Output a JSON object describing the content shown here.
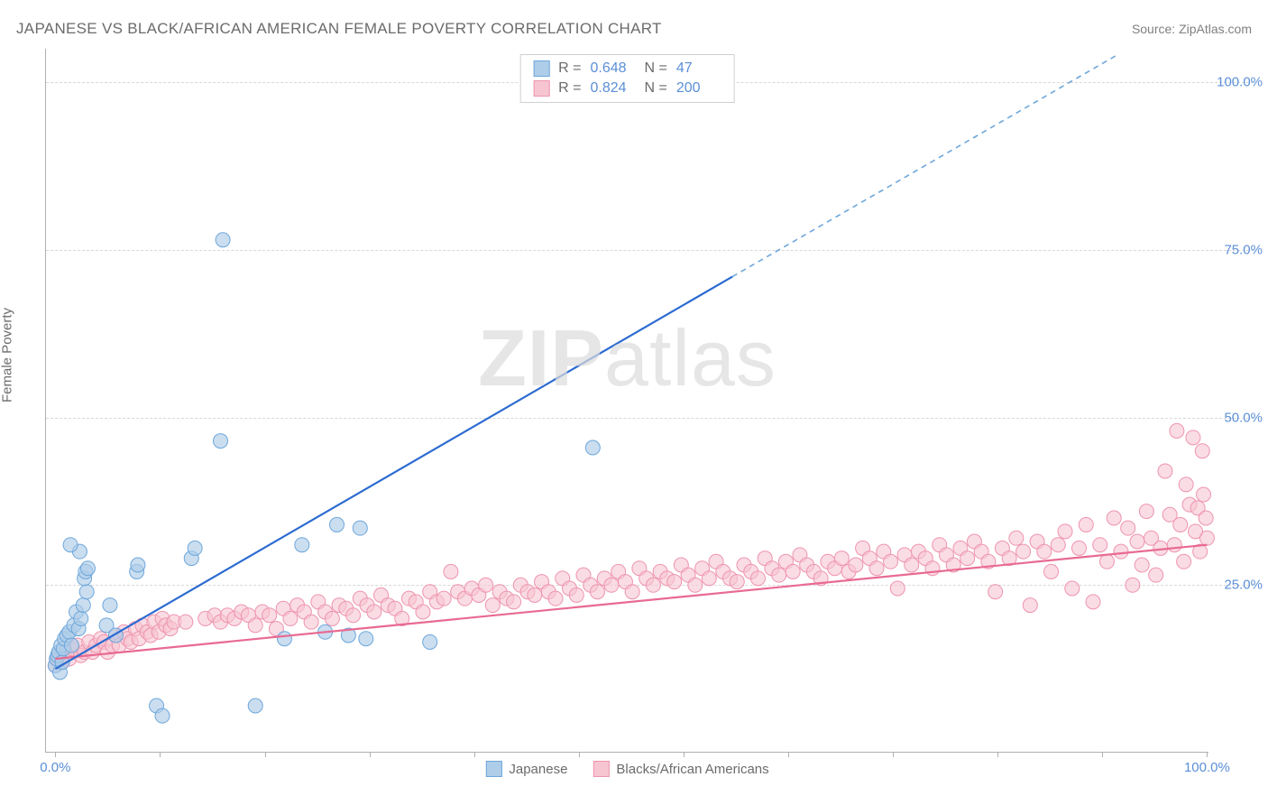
{
  "title": "JAPANESE VS BLACK/AFRICAN AMERICAN FEMALE POVERTY CORRELATION CHART",
  "source": "Source: ZipAtlas.com",
  "watermark_bold": "ZIP",
  "watermark_rest": "atlas",
  "y_axis_label": "Female Poverty",
  "x_range": [
    0,
    100
  ],
  "y_range": [
    0,
    105
  ],
  "y_ticks": [
    {
      "val": 25,
      "label": "25.0%"
    },
    {
      "val": 50,
      "label": "50.0%"
    },
    {
      "val": 75,
      "label": "75.0%"
    },
    {
      "val": 100,
      "label": "100.0%"
    }
  ],
  "x_ticks_minor": [
    0.8,
    9.8,
    18.8,
    27.8,
    36.8,
    45.8,
    54.8,
    63.8,
    72.8,
    81.8,
    90.8,
    99.8
  ],
  "x_tick_labels": [
    {
      "val": 0.8,
      "label": "0.0%"
    },
    {
      "val": 99.8,
      "label": "100.0%"
    }
  ],
  "series": [
    {
      "name": "Japanese",
      "color_fill": "#aecde8",
      "color_stroke": "#6ea7db",
      "marker_radius": 8,
      "marker_opacity": 0.65,
      "R": "0.648",
      "N": "47",
      "trend": {
        "x1": 0.8,
        "y1": 12.5,
        "x2": 59,
        "y2": 71,
        "color": "#2c6bd1",
        "width": 2.2
      },
      "trend_dashed": {
        "x1": 59,
        "y1": 71,
        "x2": 92,
        "y2": 104,
        "color": "#6ea7db",
        "width": 1.6,
        "dash": "6,5"
      },
      "points": [
        [
          0.8,
          13
        ],
        [
          0.9,
          14
        ],
        [
          1,
          14.5
        ],
        [
          1.1,
          15
        ],
        [
          1.2,
          12
        ],
        [
          1.3,
          16
        ],
        [
          1.4,
          13.5
        ],
        [
          1.5,
          15.5
        ],
        [
          1.6,
          17
        ],
        [
          1.8,
          17.5
        ],
        [
          2,
          18
        ],
        [
          2.2,
          16
        ],
        [
          2.4,
          19
        ],
        [
          2.6,
          21
        ],
        [
          2.8,
          18.5
        ],
        [
          3,
          20
        ],
        [
          3.2,
          22
        ],
        [
          3.5,
          24
        ],
        [
          3.3,
          26
        ],
        [
          3.4,
          27
        ],
        [
          3.6,
          27.5
        ],
        [
          2.9,
          30
        ],
        [
          2.1,
          31
        ],
        [
          5.2,
          19
        ],
        [
          5.5,
          22
        ],
        [
          6,
          17.5
        ],
        [
          7.8,
          27
        ],
        [
          7.9,
          28
        ],
        [
          12.5,
          29
        ],
        [
          12.8,
          30.5
        ],
        [
          9.5,
          7
        ],
        [
          10,
          5.5
        ],
        [
          18,
          7
        ],
        [
          15,
          46.5
        ],
        [
          15.2,
          76.5
        ],
        [
          20.5,
          17
        ],
        [
          22,
          31
        ],
        [
          25,
          34
        ],
        [
          27,
          33.5
        ],
        [
          24,
          18
        ],
        [
          26,
          17.5
        ],
        [
          27.5,
          17
        ],
        [
          33,
          16.5
        ],
        [
          47,
          45.5
        ],
        [
          54,
          103
        ]
      ]
    },
    {
      "name": "Blacks/African Americans",
      "color_fill": "#f7c5d2",
      "color_stroke": "#ee94af",
      "marker_radius": 8,
      "marker_opacity": 0.6,
      "R": "0.824",
      "N": "200",
      "trend": {
        "x1": 0.8,
        "y1": 14,
        "x2": 99.8,
        "y2": 31,
        "color": "#e86a92",
        "width": 2.2
      },
      "points": [
        [
          0.8,
          13
        ],
        [
          1,
          14
        ],
        [
          1.3,
          13.5
        ],
        [
          1.6,
          15
        ],
        [
          2,
          14
        ],
        [
          2.3,
          15.5
        ],
        [
          2.7,
          16
        ],
        [
          3,
          14.5
        ],
        [
          3.3,
          15
        ],
        [
          3.7,
          16.5
        ],
        [
          4,
          15
        ],
        [
          4.3,
          16
        ],
        [
          4.7,
          17
        ],
        [
          5,
          16.5
        ],
        [
          5.3,
          15
        ],
        [
          5.7,
          16
        ],
        [
          6,
          17.5
        ],
        [
          6.3,
          16
        ],
        [
          6.7,
          18
        ],
        [
          7,
          17
        ],
        [
          7.3,
          16.5
        ],
        [
          7.7,
          18.5
        ],
        [
          8,
          17
        ],
        [
          8.3,
          19
        ],
        [
          8.7,
          18
        ],
        [
          9,
          17.5
        ],
        [
          9.3,
          19.5
        ],
        [
          9.7,
          18
        ],
        [
          10,
          20
        ],
        [
          10.3,
          19
        ],
        [
          10.7,
          18.5
        ],
        [
          11,
          19.5
        ],
        [
          12,
          19.5
        ],
        [
          13.7,
          20
        ],
        [
          14.5,
          20.5
        ],
        [
          15,
          19.5
        ],
        [
          15.6,
          20.5
        ],
        [
          16.2,
          20
        ],
        [
          16.8,
          21
        ],
        [
          17.4,
          20.5
        ],
        [
          18,
          19
        ],
        [
          18.6,
          21
        ],
        [
          19.2,
          20.5
        ],
        [
          19.8,
          18.5
        ],
        [
          20.4,
          21.5
        ],
        [
          21,
          20
        ],
        [
          21.6,
          22
        ],
        [
          22.2,
          21
        ],
        [
          22.8,
          19.5
        ],
        [
          23.4,
          22.5
        ],
        [
          24,
          21
        ],
        [
          24.6,
          20
        ],
        [
          25.2,
          22
        ],
        [
          25.8,
          21.5
        ],
        [
          26.4,
          20.5
        ],
        [
          27,
          23
        ],
        [
          27.6,
          22
        ],
        [
          28.2,
          21
        ],
        [
          28.8,
          23.5
        ],
        [
          29.4,
          22
        ],
        [
          30,
          21.5
        ],
        [
          30.6,
          20
        ],
        [
          31.2,
          23
        ],
        [
          31.8,
          22.5
        ],
        [
          32.4,
          21
        ],
        [
          33,
          24
        ],
        [
          33.6,
          22.5
        ],
        [
          34.2,
          23
        ],
        [
          34.8,
          27
        ],
        [
          35.4,
          24
        ],
        [
          36,
          23
        ],
        [
          36.6,
          24.5
        ],
        [
          37.2,
          23.5
        ],
        [
          37.8,
          25
        ],
        [
          38.4,
          22
        ],
        [
          39,
          24
        ],
        [
          39.6,
          23
        ],
        [
          40.2,
          22.5
        ],
        [
          40.8,
          25
        ],
        [
          41.4,
          24
        ],
        [
          42,
          23.5
        ],
        [
          42.6,
          25.5
        ],
        [
          43.2,
          24
        ],
        [
          43.8,
          23
        ],
        [
          44.4,
          26
        ],
        [
          45,
          24.5
        ],
        [
          45.6,
          23.5
        ],
        [
          46.2,
          26.5
        ],
        [
          46.8,
          25
        ],
        [
          47.4,
          24
        ],
        [
          48,
          26
        ],
        [
          48.6,
          25
        ],
        [
          49.2,
          27
        ],
        [
          49.8,
          25.5
        ],
        [
          50.4,
          24
        ],
        [
          51,
          27.5
        ],
        [
          51.6,
          26
        ],
        [
          52.2,
          25
        ],
        [
          52.8,
          27
        ],
        [
          53.4,
          26
        ],
        [
          54,
          25.5
        ],
        [
          54.6,
          28
        ],
        [
          55.2,
          26.5
        ],
        [
          55.8,
          25
        ],
        [
          56.4,
          27.5
        ],
        [
          57,
          26
        ],
        [
          57.6,
          28.5
        ],
        [
          58.2,
          27
        ],
        [
          58.8,
          26
        ],
        [
          59.4,
          25.5
        ],
        [
          60,
          28
        ],
        [
          60.6,
          27
        ],
        [
          61.2,
          26
        ],
        [
          61.8,
          29
        ],
        [
          62.4,
          27.5
        ],
        [
          63,
          26.5
        ],
        [
          63.6,
          28.5
        ],
        [
          64.2,
          27
        ],
        [
          64.8,
          29.5
        ],
        [
          65.4,
          28
        ],
        [
          66,
          27
        ],
        [
          66.6,
          26
        ],
        [
          67.2,
          28.5
        ],
        [
          67.8,
          27.5
        ],
        [
          68.4,
          29
        ],
        [
          69,
          27
        ],
        [
          69.6,
          28
        ],
        [
          70.2,
          30.5
        ],
        [
          70.8,
          29
        ],
        [
          71.4,
          27.5
        ],
        [
          72,
          30
        ],
        [
          72.6,
          28.5
        ],
        [
          73.2,
          24.5
        ],
        [
          73.8,
          29.5
        ],
        [
          74.4,
          28
        ],
        [
          75,
          30
        ],
        [
          75.6,
          29
        ],
        [
          76.2,
          27.5
        ],
        [
          76.8,
          31
        ],
        [
          77.4,
          29.5
        ],
        [
          78,
          28
        ],
        [
          78.6,
          30.5
        ],
        [
          79.2,
          29
        ],
        [
          79.8,
          31.5
        ],
        [
          80.4,
          30
        ],
        [
          81,
          28.5
        ],
        [
          81.6,
          24
        ],
        [
          82.2,
          30.5
        ],
        [
          82.8,
          29
        ],
        [
          83.4,
          32
        ],
        [
          84,
          30
        ],
        [
          84.6,
          22
        ],
        [
          85.2,
          31.5
        ],
        [
          85.8,
          30
        ],
        [
          86.4,
          27
        ],
        [
          87,
          31
        ],
        [
          87.6,
          33
        ],
        [
          88.2,
          24.5
        ],
        [
          88.8,
          30.5
        ],
        [
          89.4,
          34
        ],
        [
          90,
          22.5
        ],
        [
          90.6,
          31
        ],
        [
          91.2,
          28.5
        ],
        [
          91.8,
          35
        ],
        [
          92.4,
          30
        ],
        [
          93,
          33.5
        ],
        [
          93.4,
          25
        ],
        [
          93.8,
          31.5
        ],
        [
          94.2,
          28
        ],
        [
          94.6,
          36
        ],
        [
          95,
          32
        ],
        [
          95.4,
          26.5
        ],
        [
          95.8,
          30.5
        ],
        [
          96.2,
          42
        ],
        [
          96.6,
          35.5
        ],
        [
          97,
          31
        ],
        [
          97.2,
          48
        ],
        [
          97.5,
          34
        ],
        [
          97.8,
          28.5
        ],
        [
          98,
          40
        ],
        [
          98.3,
          37
        ],
        [
          98.6,
          47
        ],
        [
          98.8,
          33
        ],
        [
          99,
          36.5
        ],
        [
          99.2,
          30
        ],
        [
          99.4,
          45
        ],
        [
          99.5,
          38.5
        ],
        [
          99.7,
          35
        ],
        [
          99.8,
          32
        ]
      ]
    }
  ],
  "colors": {
    "title_text": "#6b6b6b",
    "tick_label": "#5b8fd6",
    "grid": "#d8d8d8",
    "axis_line": "#b0b0b0"
  }
}
